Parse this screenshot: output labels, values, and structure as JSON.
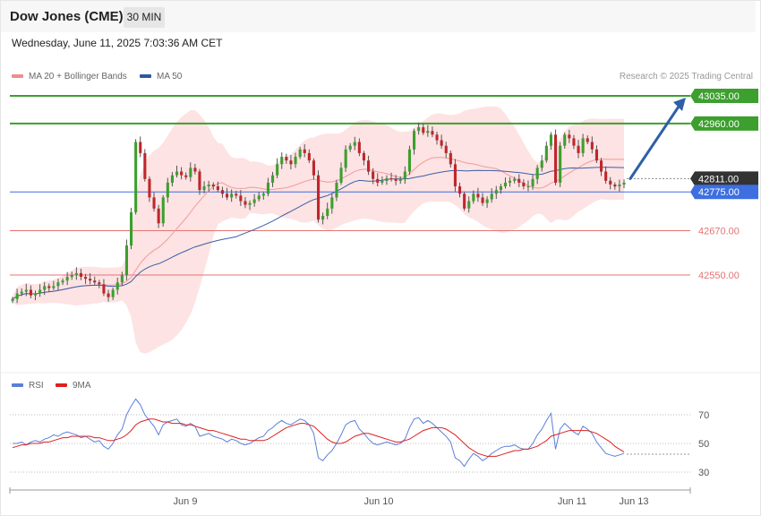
{
  "header": {
    "title": "Dow Jones (CME)",
    "timeframe": "30 MIN",
    "datetime": "Wednesday, June 11, 2025 7:03:36 AM CET"
  },
  "legend_main": [
    {
      "label": "MA 20 + Bollinger Bands",
      "color": "#f08c8c"
    },
    {
      "label": "MA 50",
      "color": "#2e5a9c"
    }
  ],
  "legend_rsi": [
    {
      "label": "RSI",
      "color": "#5b7fd8"
    },
    {
      "label": "9MA",
      "color": "#dd2020"
    }
  ],
  "credit": "Research © 2025 Trading Central",
  "colors": {
    "bull": "#3c9f2e",
    "bear": "#c0262c",
    "band_fill": "#fde3e3",
    "ma20": "#f29a9a",
    "ma50": "#3a5fa8",
    "resistance": "#3c9f2e",
    "support": "#e57373",
    "pivot": "#3d6fe0",
    "current": "#333333",
    "arrow": "#2f5fa8"
  },
  "chart_data": [
    {
      "type": "candlestick",
      "y_axis_labels": [
        "43035.00",
        "42960.00",
        "42811.00",
        "42775.00",
        "42670.00",
        "42550.00"
      ],
      "x_axis_labels": [
        "Jun 9",
        "Jun 10",
        "Jun 11",
        "Jun 13"
      ],
      "ylim": [
        42310,
        43035
      ],
      "levels": [
        {
          "label": "43035.00",
          "value": 43035,
          "kind": "resistance"
        },
        {
          "label": "42960.00",
          "value": 42960,
          "kind": "resistance"
        },
        {
          "label": "42811.00",
          "value": 42811,
          "kind": "current"
        },
        {
          "label": "42775.00",
          "value": 42775,
          "kind": "pivot"
        },
        {
          "label": "42670.00",
          "value": 42670,
          "kind": "support"
        },
        {
          "label": "42550.00",
          "value": 42550,
          "kind": "support"
        }
      ],
      "forecast": {
        "from": 42811,
        "to": 43035
      },
      "closes": [
        42485,
        42500,
        42505,
        42510,
        42495,
        42500,
        42510,
        42520,
        42515,
        42520,
        42530,
        42535,
        42545,
        42550,
        42555,
        42545,
        42540,
        42535,
        42530,
        42525,
        42500,
        42490,
        42510,
        42530,
        42550,
        42630,
        42720,
        42910,
        42880,
        42810,
        42760,
        42730,
        42690,
        42760,
        42800,
        42820,
        42830,
        42820,
        42815,
        42840,
        42830,
        42780,
        42790,
        42795,
        42790,
        42780,
        42770,
        42760,
        42770,
        42765,
        42750,
        42740,
        42745,
        42755,
        42765,
        42770,
        42800,
        42820,
        42850,
        42870,
        42860,
        42850,
        42870,
        42890,
        42880,
        42860,
        42820,
        42700,
        42710,
        42730,
        42760,
        42800,
        42840,
        42890,
        42900,
        42910,
        42880,
        42860,
        42830,
        42810,
        42800,
        42805,
        42812,
        42810,
        42805,
        42810,
        42830,
        42890,
        42940,
        42950,
        42935,
        42940,
        42930,
        42915,
        42900,
        42880,
        42850,
        42790,
        42770,
        42730,
        42750,
        42770,
        42760,
        42745,
        42755,
        42770,
        42780,
        42790,
        42800,
        42805,
        42810,
        42800,
        42790,
        42790,
        42810,
        42840,
        42860,
        42900,
        42930,
        42800,
        42900,
        42930,
        42920,
        42900,
        42880,
        42920,
        42910,
        42890,
        42860,
        42830,
        42805,
        42795,
        42790,
        42795,
        42800
      ],
      "rsi_axis_labels": [
        "70",
        "50",
        "30"
      ],
      "rsi_ylim": [
        20,
        82
      ],
      "rsi": [
        50,
        50,
        51,
        49,
        51,
        52,
        51,
        53,
        54,
        56,
        55,
        57,
        58,
        57,
        56,
        54,
        55,
        53,
        51,
        52,
        48,
        46,
        50,
        56,
        60,
        70,
        76,
        81,
        77,
        70,
        66,
        62,
        56,
        63,
        65,
        66,
        67,
        63,
        62,
        64,
        62,
        55,
        56,
        57,
        55,
        54,
        53,
        51,
        53,
        52,
        50,
        49,
        50,
        52,
        54,
        55,
        59,
        61,
        64,
        66,
        64,
        63,
        65,
        67,
        66,
        63,
        57,
        40,
        38,
        42,
        45,
        50,
        56,
        63,
        65,
        66,
        60,
        57,
        53,
        50,
        49,
        50,
        51,
        50,
        49,
        50,
        53,
        61,
        67,
        68,
        64,
        66,
        64,
        61,
        58,
        55,
        51,
        40,
        38,
        34,
        39,
        43,
        41,
        38,
        40,
        43,
        45,
        47,
        48,
        48,
        49,
        47,
        46,
        46,
        50,
        56,
        60,
        66,
        71,
        46,
        60,
        64,
        61,
        58,
        56,
        62,
        60,
        57,
        51,
        47,
        43,
        42,
        41,
        42,
        43
      ],
      "rsi_ma9": [
        47,
        48,
        49,
        49,
        50,
        50,
        50,
        51,
        51,
        52,
        53,
        54,
        54,
        55,
        55,
        55,
        55,
        55,
        54,
        54,
        53,
        52,
        52,
        53,
        54,
        56,
        59,
        63,
        65,
        66,
        67,
        67,
        66,
        65,
        65,
        64,
        64,
        64,
        63,
        63,
        62,
        61,
        60,
        59,
        59,
        58,
        57,
        56,
        55,
        54,
        53,
        53,
        52,
        52,
        52,
        52,
        53,
        55,
        57,
        59,
        61,
        62,
        63,
        64,
        64,
        63,
        62,
        59,
        56,
        53,
        51,
        50,
        50,
        51,
        53,
        55,
        56,
        57,
        57,
        56,
        55,
        54,
        53,
        52,
        51,
        51,
        52,
        53,
        55,
        57,
        59,
        60,
        61,
        61,
        61,
        60,
        58,
        56,
        53,
        50,
        47,
        45,
        43,
        42,
        41,
        41,
        41,
        42,
        43,
        44,
        45,
        45,
        46,
        46,
        47,
        48,
        50,
        52,
        55,
        56,
        57,
        58,
        59,
        59,
        59,
        59,
        59,
        58,
        57,
        55,
        53,
        51,
        48,
        46,
        44
      ]
    }
  ]
}
